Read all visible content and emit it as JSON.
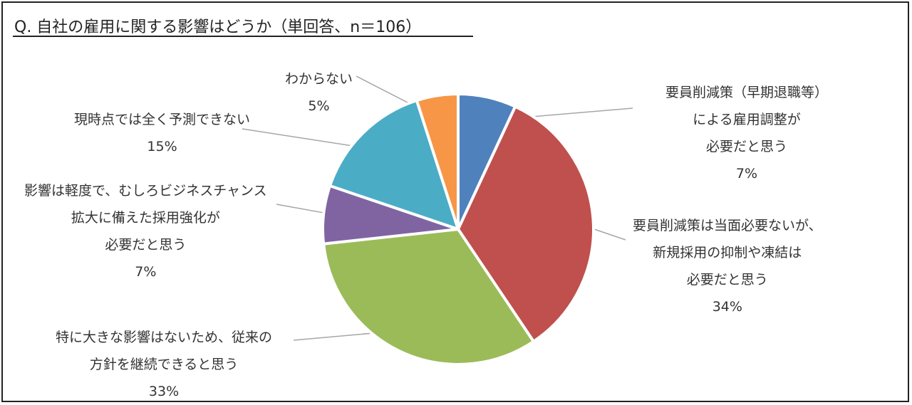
{
  "title": "Q.  自社の雇用に関する影響はどうか（単回答、n＝106）",
  "chart_data": {
    "type": "pie",
    "title": "Q.  自社の雇用に関する影響はどうか（単回答、n＝106）",
    "n": 106,
    "start_angle_deg": 0,
    "direction": "clockwise",
    "slices": [
      {
        "label_lines": [
          "要員削減策（早期退職等）",
          "による雇用調整が",
          "必要だと思う"
        ],
        "value": 7,
        "pct_label": "7%",
        "color": "#4F81BD"
      },
      {
        "label_lines": [
          "要員削減策は当面必要ないが、",
          "新規採用の抑制や凍結は",
          "必要だと思う"
        ],
        "value": 34,
        "pct_label": "34%",
        "color": "#C0504D"
      },
      {
        "label_lines": [
          "特に大きな影響はないため、従来の",
          "方針を継続できると思う"
        ],
        "value": 33,
        "pct_label": "33%",
        "color": "#9BBB59"
      },
      {
        "label_lines": [
          "影響は軽度で、むしろビジネスチャンス",
          "拡大に備えた採用強化が",
          "必要だと思う"
        ],
        "value": 7,
        "pct_label": "7%",
        "color": "#8064A2"
      },
      {
        "label_lines": [
          "現時点では全く予測できない"
        ],
        "value": 15,
        "pct_label": "15%",
        "color": "#4BACC6"
      },
      {
        "label_lines": [
          "わからない"
        ],
        "value": 5,
        "pct_label": "5%",
        "color": "#F79646"
      }
    ]
  }
}
